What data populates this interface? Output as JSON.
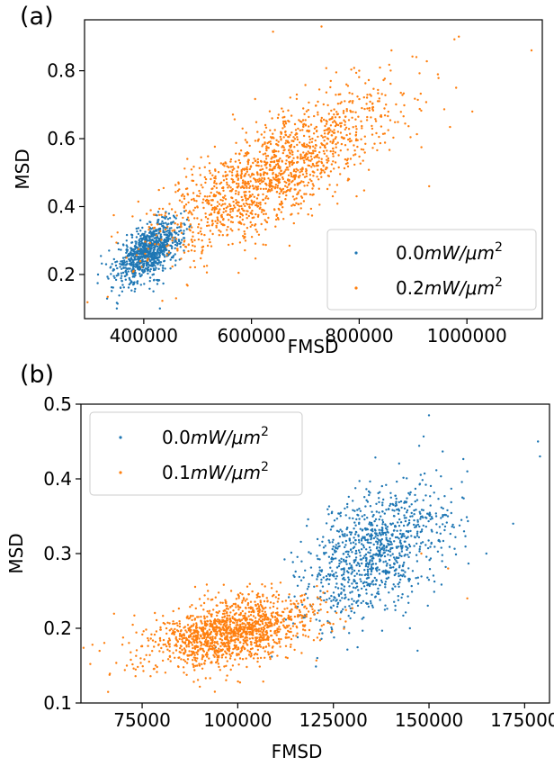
{
  "chart_data": [
    {
      "type": "scatter",
      "panel_label": "(a)",
      "xlabel": "FMSD",
      "ylabel": "MSD",
      "xlim": [
        290000,
        1140000
      ],
      "ylim": [
        0.07,
        0.95
      ],
      "xticks": [
        400000,
        600000,
        800000,
        1000000
      ],
      "xtick_labels": [
        "400000",
        "600000",
        "800000",
        "1000000"
      ],
      "yticks": [
        0.2,
        0.4,
        0.6,
        0.8
      ],
      "ytick_labels": [
        "0.2",
        "0.4",
        "0.6",
        "0.8"
      ],
      "grid": false,
      "legend": {
        "position": "bottom-right"
      },
      "series": [
        {
          "name": "0.0mW/μm²",
          "legend_value": "0.0",
          "legend_unit": "mW/μm",
          "legend_sup": "2",
          "color": "#1f77b4",
          "cloud": {
            "count": 900,
            "x_mean": 410000,
            "x_sd": 30000,
            "y_mean": 0.27,
            "y_sd": 0.045,
            "corr": 0.55
          },
          "points": [
            [
              315000,
              0.2
            ],
            [
              350000,
              0.1
            ],
            [
              430000,
              0.1
            ],
            [
              360000,
              0.15
            ],
            [
              470000,
              0.35
            ],
            [
              330000,
              0.23
            ]
          ]
        },
        {
          "name": "0.2mW/μm²",
          "legend_value": "0.2",
          "legend_unit": "mW/μm",
          "legend_sup": "2",
          "color": "#ff7f0e",
          "cloud": {
            "count": 1500,
            "x_mean": 640000,
            "x_sd": 110000,
            "y_mean": 0.5,
            "y_sd": 0.12,
            "corr": 0.78
          },
          "points": [
            [
              730000,
              0.93
            ],
            [
              640000,
              0.915
            ],
            [
              1120000,
              0.86
            ],
            [
              1010000,
              0.68
            ],
            [
              930000,
              0.46
            ],
            [
              800000,
              0.8
            ],
            [
              980000,
              0.75
            ],
            [
              860000,
              0.86
            ],
            [
              460000,
              0.13
            ],
            [
              480000,
              0.17
            ]
          ]
        }
      ]
    },
    {
      "type": "scatter",
      "panel_label": "(b)",
      "xlabel": "FMSD",
      "ylabel": "MSD",
      "xlim": [
        59000,
        181500
      ],
      "ylim": [
        0.1,
        0.5
      ],
      "xticks": [
        75000,
        100000,
        125000,
        150000,
        175000
      ],
      "xtick_labels": [
        "75000",
        "100000",
        "125000",
        "150000",
        "175000"
      ],
      "yticks": [
        0.1,
        0.2,
        0.3,
        0.4,
        0.5
      ],
      "ytick_labels": [
        "0.1",
        "0.2",
        "0.3",
        "0.4",
        "0.5"
      ],
      "grid": false,
      "legend": {
        "position": "top-left"
      },
      "series": [
        {
          "name": "0.0mW/μm²",
          "legend_value": "0.0",
          "legend_unit": "mW/μm",
          "legend_sup": "2",
          "color": "#1f77b4",
          "cloud": {
            "count": 1000,
            "x_mean": 136000,
            "x_sd": 9500,
            "y_mean": 0.3,
            "y_sd": 0.045,
            "corr": 0.45
          },
          "points": [
            [
              150000,
              0.485
            ],
            [
              178500,
              0.45
            ],
            [
              179000,
              0.43
            ],
            [
              160000,
              0.41
            ],
            [
              165000,
              0.3
            ],
            [
              172000,
              0.34
            ],
            [
              145000,
              0.2
            ],
            [
              147000,
              0.17
            ],
            [
              124000,
              0.24
            ]
          ]
        },
        {
          "name": "0.1mW/μm²",
          "legend_value": "0.1",
          "legend_unit": "mW/μm",
          "legend_sup": "2",
          "color": "#ff7f0e",
          "cloud": {
            "count": 1400,
            "x_mean": 98000,
            "x_sd": 11000,
            "y_mean": 0.195,
            "y_sd": 0.025,
            "corr": 0.45
          },
          "points": [
            [
              62000,
              0.178
            ],
            [
              71000,
              0.15
            ],
            [
              160000,
              0.24
            ],
            [
              155000,
              0.28
            ],
            [
              94000,
              0.115
            ],
            [
              148000,
              0.3
            ]
          ]
        }
      ]
    }
  ]
}
